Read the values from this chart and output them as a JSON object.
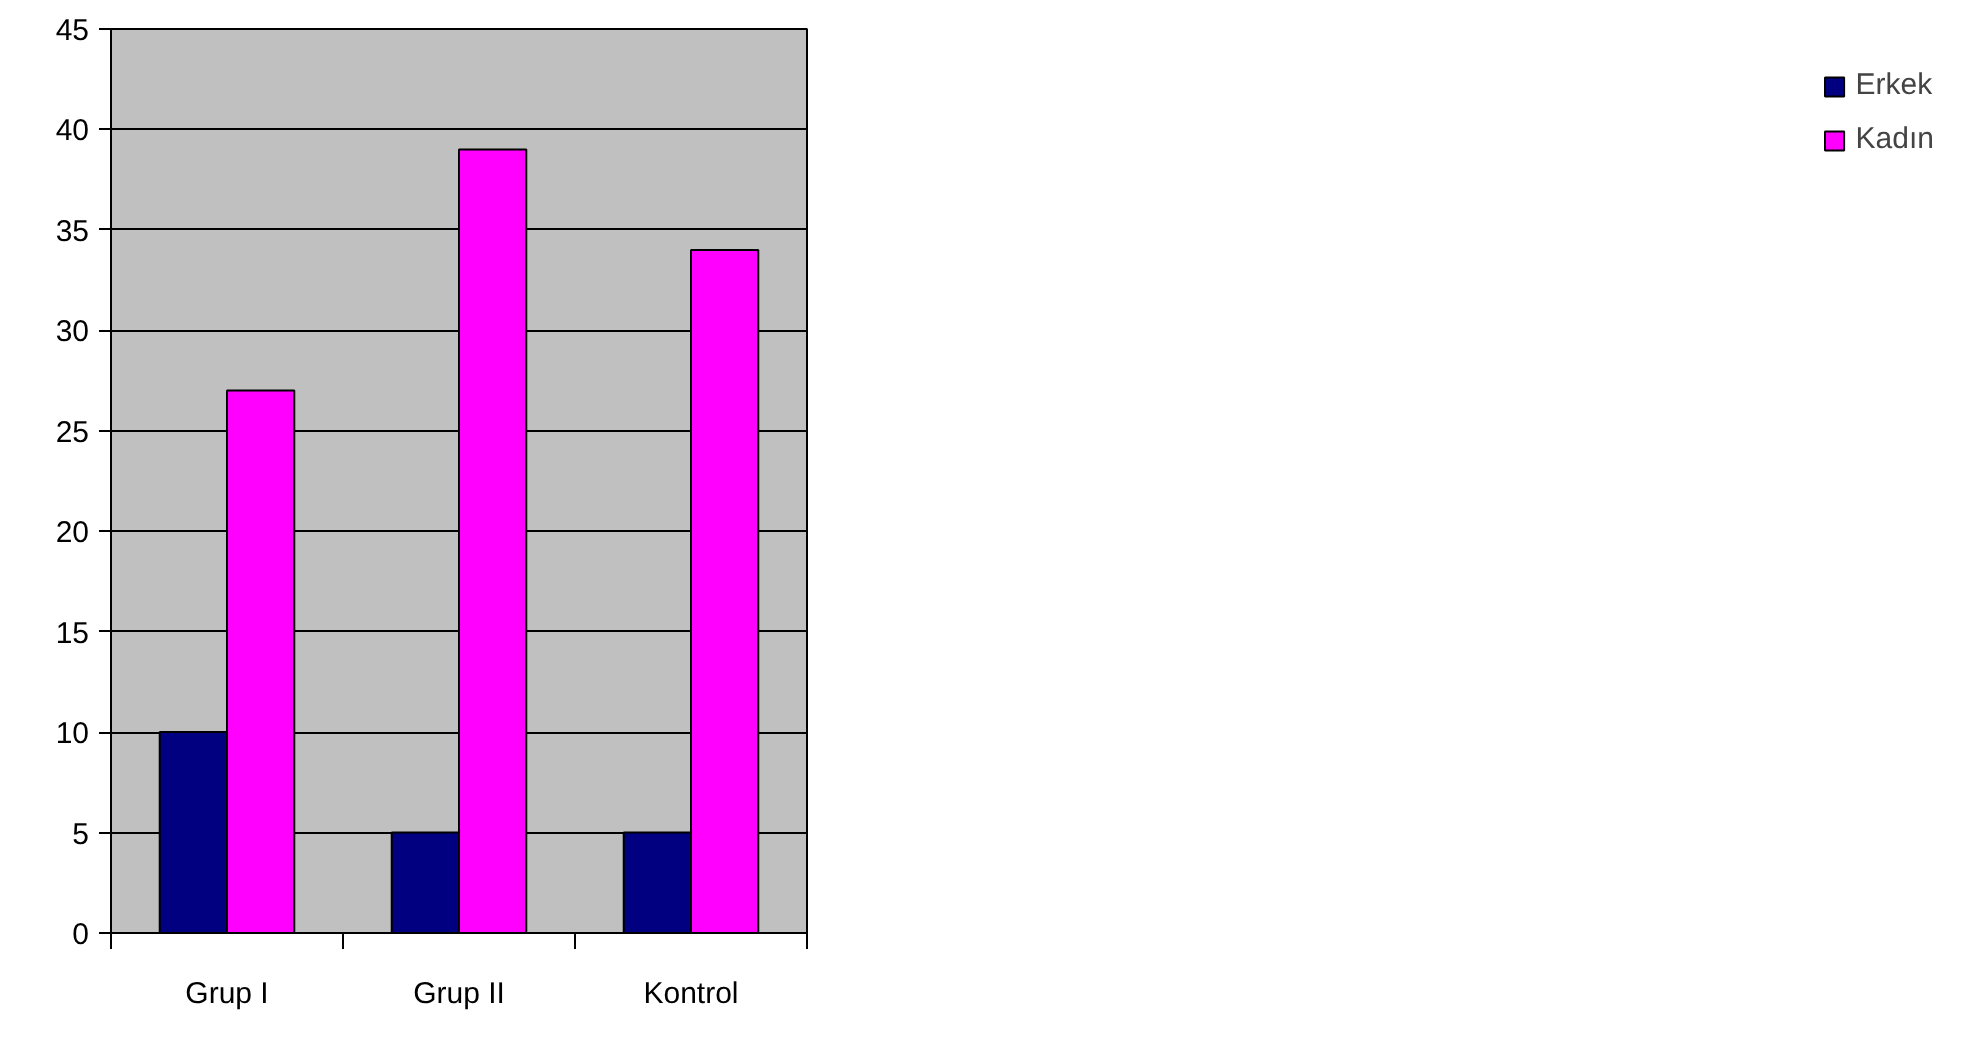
{
  "chart_data": {
    "type": "bar",
    "categories": [
      "Grup I",
      "Grup II",
      "Kontrol"
    ],
    "series": [
      {
        "name": "Erkek",
        "color": "#000080",
        "values": [
          10,
          5,
          5
        ]
      },
      {
        "name": "Kadın",
        "color": "#ff00ff",
        "values": [
          27,
          39,
          34
        ]
      }
    ],
    "ylim": [
      0,
      45
    ],
    "yticks": [
      0,
      5,
      10,
      15,
      20,
      25,
      30,
      35,
      40,
      45
    ],
    "grid": "y",
    "legend": "right"
  }
}
